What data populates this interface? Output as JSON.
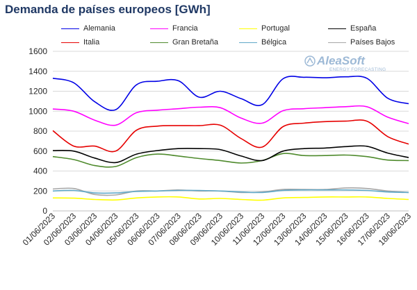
{
  "chart_data": {
    "type": "line",
    "title": "Demanda de países europeos [GWh]",
    "xlabel": "",
    "ylabel": "",
    "ylim": [
      0,
      1600
    ],
    "y_ticks": [
      "0",
      "200",
      "400",
      "600",
      "800",
      "1000",
      "1200",
      "1400",
      "1600"
    ],
    "grid": "horizontal",
    "legend_position": "top",
    "categories": [
      "01/06/2023",
      "02/06/2023",
      "03/06/2023",
      "04/06/2023",
      "05/06/2023",
      "06/06/2023",
      "07/06/2023",
      "08/06/2023",
      "09/06/2023",
      "10/06/2023",
      "11/06/2023",
      "12/06/2023",
      "13/06/2023",
      "14/06/2023",
      "15/06/2023",
      "16/06/2023",
      "17/06/2023",
      "18/06/2023"
    ],
    "series": [
      {
        "name": "Alemania",
        "color": "#0000e6",
        "values": [
          1330,
          1285,
          1095,
          1015,
          1265,
          1300,
          1305,
          1140,
          1200,
          1125,
          1065,
          1325,
          1340,
          1335,
          1345,
          1330,
          1130,
          1075
        ]
      },
      {
        "name": "Francia",
        "color": "#ff00ff",
        "values": [
          1022,
          1000,
          910,
          860,
          985,
          1010,
          1025,
          1040,
          1035,
          930,
          880,
          1005,
          1025,
          1035,
          1045,
          1045,
          940,
          875
        ]
      },
      {
        "name": "Portugal",
        "color": "#ffff00",
        "values": [
          130,
          128,
          115,
          110,
          130,
          140,
          140,
          120,
          125,
          115,
          108,
          130,
          135,
          140,
          140,
          140,
          125,
          115
        ]
      },
      {
        "name": "España",
        "color": "#000000",
        "values": [
          605,
          600,
          530,
          485,
          570,
          605,
          625,
          625,
          615,
          550,
          505,
          600,
          625,
          630,
          645,
          648,
          580,
          535
        ]
      },
      {
        "name": "Italia",
        "color": "#e60000",
        "values": [
          805,
          650,
          650,
          600,
          810,
          850,
          855,
          855,
          860,
          725,
          640,
          845,
          880,
          895,
          900,
          900,
          745,
          670
        ]
      },
      {
        "name": "Gran Bretaña",
        "color": "#4e8a2c",
        "values": [
          545,
          515,
          455,
          445,
          535,
          570,
          550,
          525,
          505,
          480,
          505,
          575,
          555,
          555,
          560,
          545,
          510,
          505
        ]
      },
      {
        "name": "Bélgica",
        "color": "#5fa8c8",
        "values": [
          200,
          205,
          180,
          180,
          195,
          200,
          205,
          205,
          200,
          190,
          185,
          205,
          210,
          210,
          210,
          205,
          190,
          185
        ]
      },
      {
        "name": "Países Bajos",
        "color": "#a6a6a6",
        "values": [
          220,
          225,
          165,
          160,
          200,
          200,
          210,
          200,
          200,
          185,
          190,
          215,
          215,
          215,
          230,
          225,
          200,
          185
        ]
      }
    ]
  },
  "watermark": {
    "name": "AleaSoft",
    "subtitle": "ENERGY FORECASTING"
  }
}
